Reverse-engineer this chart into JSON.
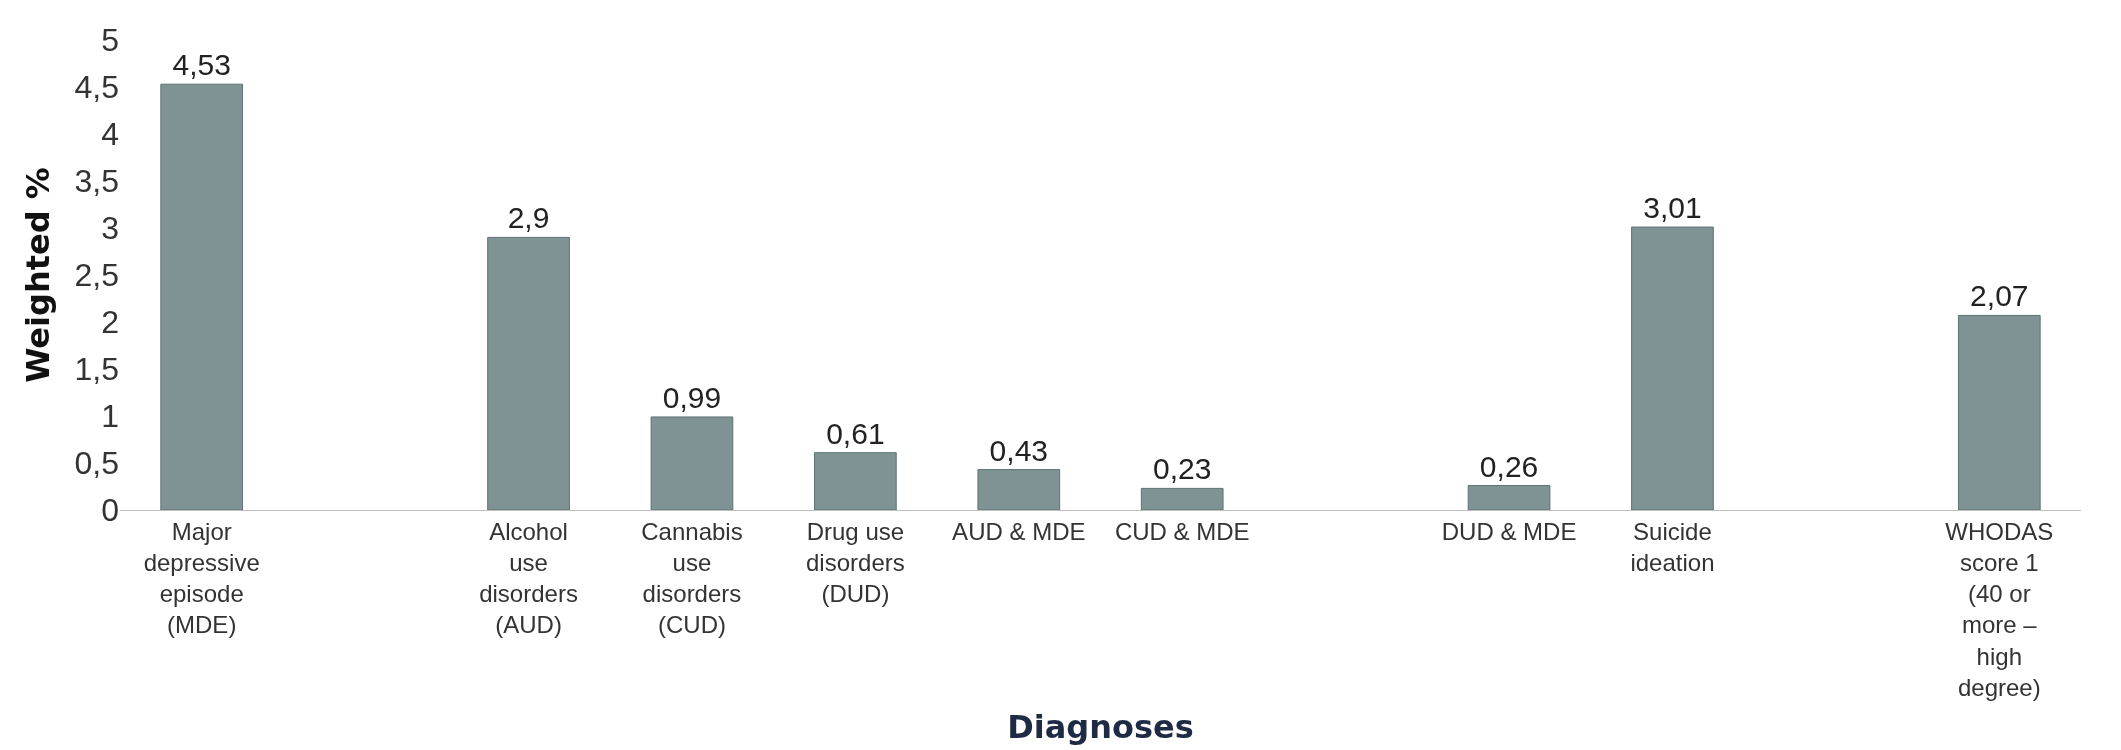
{
  "chart_data": {
    "type": "bar",
    "xlabel": "Diagnoses",
    "ylabel": "Weighted %",
    "categories": [
      "Major depressive episode (MDE)",
      null,
      "Alcohol use disorders (AUD)",
      "Cannabis use disorders (CUD)",
      "Drug use disorders (DUD)",
      "AUD & MDE",
      "CUD & MDE",
      null,
      "DUD & MDE",
      "Suicide ideation",
      null,
      "WHODAS score 1 (40 or more – high degree)"
    ],
    "values": [
      4.53,
      null,
      2.9,
      0.99,
      0.61,
      0.43,
      0.23,
      null,
      0.26,
      3.01,
      null,
      2.07
    ],
    "value_labels": [
      "4,53",
      null,
      "2,9",
      "0,99",
      "0,61",
      "0,43",
      "0,23",
      null,
      "0,26",
      "3,01",
      null,
      "2,07"
    ],
    "color": "#7f9394",
    "ylim": [
      0,
      5
    ],
    "yticks": [
      0,
      {
        "value": 0.5,
        "label": "0,5"
      },
      1,
      {
        "value": 1.5,
        "label": "1,5"
      },
      2,
      {
        "value": 2.5,
        "label": "2,5"
      },
      3,
      {
        "value": 3.5,
        "label": "3,5"
      },
      4,
      {
        "value": 4.5,
        "label": "4,5"
      },
      5
    ],
    "grid": false,
    "legend": false
  }
}
